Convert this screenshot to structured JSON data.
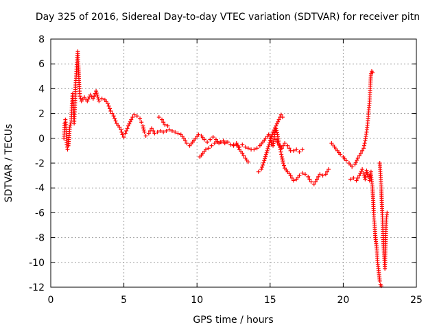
{
  "chart_data": {
    "type": "scatter",
    "title": "Day 325 of 2016, Sidereal Day-to-day VTEC variation (SDTVAR) for receiver pitn",
    "xlabel": "GPS time / hours",
    "ylabel": "SDTVAR / TECUs",
    "xlim": [
      0,
      25
    ],
    "ylim": [
      -12,
      8
    ],
    "xticks": [
      0,
      5,
      10,
      15,
      20,
      25
    ],
    "yticks": [
      -12,
      -10,
      -8,
      -6,
      -4,
      -2,
      0,
      2,
      4,
      6,
      8
    ],
    "grid": true,
    "marker": "+",
    "color": "#ff0000",
    "series": [
      {
        "name": "SDTVAR",
        "segments": [
          [
            [
              0.9,
              0.0
            ],
            [
              0.95,
              1.2
            ],
            [
              1.0,
              1.5
            ],
            [
              1.05,
              0.7
            ],
            [
              1.1,
              -0.5
            ],
            [
              1.15,
              -0.9
            ],
            [
              1.2,
              -0.6
            ],
            [
              1.3,
              0.9
            ],
            [
              1.4,
              1.4
            ],
            [
              1.45,
              2.8
            ],
            [
              1.5,
              3.6
            ],
            [
              1.55,
              2.3
            ],
            [
              1.6,
              1.2
            ],
            [
              1.65,
              2.5
            ],
            [
              1.7,
              4.3
            ],
            [
              1.75,
              5.2
            ],
            [
              1.8,
              6.5
            ],
            [
              1.85,
              7.0
            ],
            [
              1.9,
              5.5
            ],
            [
              1.95,
              4.0
            ],
            [
              2.0,
              3.4
            ],
            [
              2.1,
              3.0
            ],
            [
              2.3,
              3.3
            ],
            [
              2.5,
              3.0
            ],
            [
              2.7,
              3.5
            ],
            [
              2.9,
              3.2
            ],
            [
              3.1,
              3.8
            ],
            [
              3.3,
              3.0
            ],
            [
              3.5,
              3.2
            ],
            [
              3.7,
              3.1
            ],
            [
              3.9,
              2.8
            ],
            [
              4.1,
              2.2
            ],
            [
              4.3,
              1.8
            ],
            [
              4.5,
              1.2
            ],
            [
              4.7,
              0.9
            ],
            [
              4.8,
              0.7
            ],
            [
              4.9,
              0.3
            ],
            [
              5.0,
              0.1
            ],
            [
              5.1,
              0.4
            ],
            [
              5.3,
              1.0
            ],
            [
              5.5,
              1.5
            ],
            [
              5.7,
              1.9
            ],
            [
              5.9,
              1.8
            ],
            [
              6.1,
              1.6
            ],
            [
              6.2,
              1.3
            ],
            [
              6.3,
              1.0
            ],
            [
              6.4,
              0.5
            ],
            [
              6.5,
              0.2
            ],
            [
              6.7,
              0.4
            ],
            [
              6.9,
              0.8
            ],
            [
              7.1,
              0.4
            ],
            [
              7.3,
              0.5
            ],
            [
              7.5,
              0.6
            ],
            [
              7.7,
              0.5
            ],
            [
              7.9,
              0.6
            ],
            [
              8.1,
              0.7
            ],
            [
              8.3,
              0.6
            ],
            [
              8.5,
              0.5
            ],
            [
              8.7,
              0.4
            ],
            [
              8.9,
              0.3
            ],
            [
              9.1,
              0.0
            ],
            [
              9.3,
              -0.4
            ],
            [
              9.5,
              -0.6
            ],
            [
              9.7,
              -0.3
            ],
            [
              9.9,
              0.0
            ],
            [
              10.1,
              0.3
            ],
            [
              10.3,
              0.2
            ],
            [
              10.5,
              -0.1
            ],
            [
              10.7,
              -0.3
            ],
            [
              10.9,
              -0.1
            ],
            [
              11.1,
              0.1
            ],
            [
              11.3,
              -0.1
            ],
            [
              11.5,
              -0.4
            ],
            [
              11.7,
              -0.3
            ],
            [
              11.9,
              -0.4
            ],
            [
              12.1,
              -0.3
            ],
            [
              12.3,
              -0.5
            ],
            [
              12.5,
              -0.6
            ],
            [
              12.7,
              -0.5
            ],
            [
              12.9,
              -0.7
            ],
            [
              13.1,
              -0.5
            ],
            [
              13.3,
              -0.7
            ],
            [
              13.5,
              -0.8
            ],
            [
              13.7,
              -0.9
            ],
            [
              13.9,
              -0.9
            ],
            [
              14.1,
              -0.8
            ],
            [
              14.3,
              -0.6
            ],
            [
              14.5,
              -0.3
            ],
            [
              14.7,
              0.0
            ],
            [
              14.9,
              0.3
            ]
          ],
          [
            [
              7.4,
              1.7
            ],
            [
              7.6,
              1.5
            ],
            [
              7.8,
              1.1
            ],
            [
              8.0,
              1.0
            ]
          ],
          [
            [
              10.2,
              -1.5
            ],
            [
              10.4,
              -1.2
            ],
            [
              10.6,
              -0.9
            ],
            [
              10.8,
              -0.8
            ],
            [
              11.0,
              -0.6
            ],
            [
              11.2,
              -0.4
            ],
            [
              11.4,
              -0.3
            ],
            [
              11.6,
              -0.3
            ],
            [
              11.8,
              -0.2
            ],
            [
              12.0,
              -0.3
            ]
          ],
          [
            [
              12.5,
              -0.5
            ],
            [
              12.7,
              -0.4
            ],
            [
              12.9,
              -0.9
            ],
            [
              13.1,
              -1.2
            ],
            [
              13.3,
              -1.6
            ],
            [
              13.5,
              -1.9
            ]
          ],
          [
            [
              14.2,
              -2.7
            ],
            [
              14.4,
              -2.5
            ],
            [
              14.6,
              -1.8
            ],
            [
              14.8,
              -1.0
            ],
            [
              15.0,
              -0.2
            ],
            [
              15.2,
              0.5
            ],
            [
              15.4,
              1.0
            ],
            [
              15.6,
              1.5
            ],
            [
              15.75,
              1.9
            ],
            [
              15.85,
              1.7
            ]
          ],
          [
            [
              15.0,
              0.2
            ],
            [
              15.1,
              -0.5
            ],
            [
              15.2,
              -0.6
            ],
            [
              15.3,
              0.3
            ],
            [
              15.4,
              0.8
            ],
            [
              15.5,
              0.3
            ],
            [
              15.6,
              -0.4
            ],
            [
              15.7,
              -0.9
            ],
            [
              15.8,
              -1.5
            ],
            [
              15.9,
              -2.0
            ],
            [
              16.0,
              -2.4
            ],
            [
              16.2,
              -2.7
            ],
            [
              16.4,
              -3.0
            ],
            [
              16.6,
              -3.4
            ],
            [
              16.8,
              -3.3
            ],
            [
              17.0,
              -3.0
            ],
            [
              17.2,
              -2.8
            ],
            [
              17.4,
              -2.9
            ],
            [
              17.6,
              -3.1
            ],
            [
              17.8,
              -3.5
            ],
            [
              18.0,
              -3.7
            ],
            [
              18.2,
              -3.3
            ],
            [
              18.4,
              -2.9
            ],
            [
              18.6,
              -3.0
            ],
            [
              18.8,
              -2.9
            ],
            [
              19.0,
              -2.5
            ]
          ],
          [
            [
              15.4,
              -0.1
            ],
            [
              15.6,
              -0.5
            ],
            [
              15.8,
              -0.8
            ],
            [
              16.0,
              -0.4
            ],
            [
              16.2,
              -0.6
            ],
            [
              16.4,
              -1.0
            ],
            [
              16.6,
              -1.0
            ],
            [
              16.8,
              -0.9
            ],
            [
              17.0,
              -1.1
            ],
            [
              17.2,
              -0.9
            ]
          ],
          [
            [
              19.2,
              -0.4
            ],
            [
              19.4,
              -0.7
            ],
            [
              19.6,
              -1.0
            ],
            [
              19.8,
              -1.3
            ],
            [
              20.0,
              -1.5
            ],
            [
              20.2,
              -1.8
            ],
            [
              20.4,
              -2.0
            ],
            [
              20.6,
              -2.3
            ],
            [
              20.8,
              -2.1
            ],
            [
              21.0,
              -1.6
            ],
            [
              21.2,
              -1.2
            ],
            [
              21.4,
              -0.8
            ],
            [
              21.5,
              -0.2
            ],
            [
              21.6,
              0.5
            ],
            [
              21.7,
              1.6
            ],
            [
              21.8,
              3.0
            ],
            [
              21.85,
              4.2
            ],
            [
              21.9,
              5.2
            ],
            [
              21.95,
              5.4
            ],
            [
              22.0,
              5.3
            ]
          ],
          [
            [
              20.5,
              -3.3
            ],
            [
              20.7,
              -3.2
            ],
            [
              20.9,
              -3.4
            ],
            [
              21.1,
              -3.0
            ],
            [
              21.3,
              -2.5
            ],
            [
              21.4,
              -2.8
            ],
            [
              21.5,
              -3.3
            ],
            [
              21.6,
              -2.6
            ],
            [
              21.7,
              -3.1
            ],
            [
              21.8,
              -3.4
            ],
            [
              21.9,
              -2.7
            ]
          ],
          [
            [
              21.9,
              -3.0
            ],
            [
              22.0,
              -4.0
            ],
            [
              22.05,
              -5.0
            ],
            [
              22.1,
              -6.5
            ],
            [
              22.15,
              -7.0
            ],
            [
              22.2,
              -8.0
            ],
            [
              22.25,
              -8.5
            ],
            [
              22.3,
              -9.0
            ],
            [
              22.35,
              -10.0
            ],
            [
              22.4,
              -10.5
            ],
            [
              22.45,
              -11.0
            ],
            [
              22.5,
              -11.5
            ],
            [
              22.55,
              -11.8
            ],
            [
              22.6,
              -11.9
            ]
          ],
          [
            [
              22.5,
              -2.0
            ],
            [
              22.55,
              -3.0
            ],
            [
              22.6,
              -4.0
            ],
            [
              22.65,
              -5.5
            ],
            [
              22.7,
              -7.0
            ],
            [
              22.75,
              -8.5
            ],
            [
              22.8,
              -9.5
            ],
            [
              22.85,
              -10.5
            ],
            [
              22.9,
              -8.0
            ],
            [
              22.95,
              -6.5
            ],
            [
              23.0,
              -6.0
            ]
          ]
        ]
      }
    ]
  }
}
